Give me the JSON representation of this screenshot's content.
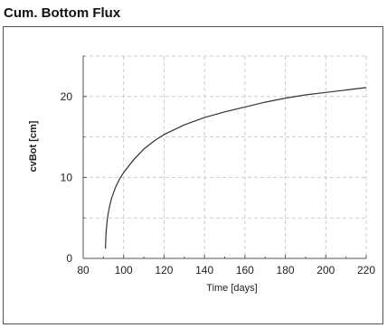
{
  "window": {
    "title": "Cum. Bottom Flux"
  },
  "chart_data": {
    "type": "line",
    "title": "Cum. Bottom Flux",
    "xlabel": "Time [days]",
    "ylabel": "cvBot [cm]",
    "xlim": [
      80,
      220
    ],
    "ylim": [
      0,
      25
    ],
    "xticks": [
      80,
      100,
      120,
      140,
      160,
      180,
      200,
      220
    ],
    "yticks": [
      0,
      10,
      20
    ],
    "grid": true,
    "line_color": "#333333",
    "grid_color": "#cccccc",
    "series": [
      {
        "x": [
          91,
          91.3,
          92,
          93,
          94,
          96,
          98,
          100,
          105,
          110,
          115,
          120,
          130,
          140,
          150,
          160,
          170,
          180,
          190,
          200,
          210,
          220
        ],
        "y": [
          1.2,
          3.2,
          5.0,
          6.4,
          7.4,
          8.8,
          9.8,
          10.6,
          12.2,
          13.5,
          14.5,
          15.3,
          16.5,
          17.4,
          18.1,
          18.7,
          19.3,
          19.8,
          20.2,
          20.5,
          20.8,
          21.1
        ]
      }
    ]
  }
}
